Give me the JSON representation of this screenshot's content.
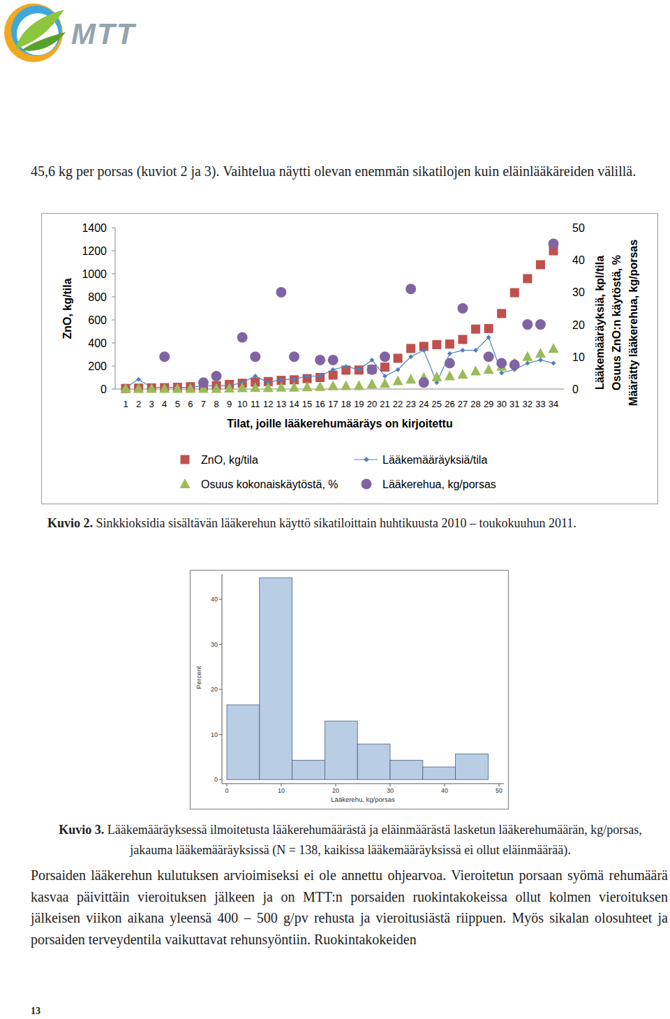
{
  "header": {
    "logo_text": "MTT"
  },
  "intro": "45,6 kg per porsas (kuviot 2 ja 3). Vaihtelua näytti olevan enemmän sikatilojen kuin eläinlääkäreiden välillä.",
  "chart_data": [
    {
      "type": "combo",
      "x_label": "Tilat, joille lääkerehumääräys on kirjoitettu",
      "y_label": "ZnO, kg/tila",
      "y2_label": [
        "Lääkemääräyksiä, kpl/tila",
        "Osuus ZnO:n käytöstä, %",
        "Määrätty lääkerehua, kg/porsas"
      ],
      "categories": [
        1,
        2,
        3,
        4,
        5,
        6,
        7,
        8,
        9,
        10,
        11,
        12,
        13,
        14,
        15,
        16,
        17,
        18,
        19,
        20,
        21,
        22,
        23,
        24,
        25,
        26,
        27,
        28,
        29,
        30,
        31,
        32,
        33,
        34
      ],
      "ylim": [
        0,
        1400
      ],
      "yticks": [
        0,
        200,
        400,
        600,
        800,
        1000,
        1200,
        1400
      ],
      "y2lim": [
        0,
        50
      ],
      "y2ticks": [
        0,
        10,
        20,
        30,
        40,
        50
      ],
      "legend": "bottom",
      "grid": false,
      "series": [
        {
          "name": "ZnO, kg/tila",
          "type": "scatter",
          "marker": "square",
          "color": "#C0504D",
          "values": [
            5,
            8,
            10,
            12,
            15,
            20,
            25,
            30,
            40,
            50,
            60,
            65,
            75,
            80,
            90,
            100,
            121,
            164,
            165,
            170,
            190,
            267,
            352,
            370,
            385,
            390,
            430,
            520,
            525,
            655,
            836,
            958,
            1079,
            1200
          ]
        },
        {
          "name": "Lääkemääräyksiä/tila",
          "type": "line",
          "marker": "diamond",
          "color": "#4F81BD",
          "axis": "y2",
          "values": [
            0.5,
            3,
            0.5,
            0.5,
            0.5,
            0.5,
            1,
            1,
            1,
            2,
            4,
            2,
            3,
            3,
            4,
            4,
            6,
            7,
            6,
            9,
            4,
            6,
            10,
            12,
            2,
            11,
            12,
            12,
            16,
            5,
            6,
            8,
            9,
            8
          ]
        },
        {
          "name": "Osuus kokonaiskäytöstä, %",
          "type": "scatter",
          "marker": "triangle",
          "color": "#9BBB59",
          "axis": "y2",
          "values": [
            0.1,
            0.1,
            0.1,
            0.1,
            0.1,
            0.1,
            0.1,
            0.1,
            0.2,
            0.3,
            0.4,
            0.4,
            0.5,
            0.5,
            0.6,
            0.7,
            0.9,
            1,
            1,
            1.5,
            1.7,
            2.5,
            3,
            3.5,
            3.7,
            4,
            4.5,
            5.5,
            6,
            7,
            8,
            10,
            11,
            12.5
          ]
        },
        {
          "name": "Lääkerehua, kg/porsas",
          "type": "scatter",
          "marker": "circle",
          "color": "#8064A2",
          "axis": "y2",
          "values": [
            null,
            null,
            null,
            10,
            null,
            null,
            2,
            4,
            null,
            16,
            10,
            null,
            30,
            10,
            null,
            9,
            9,
            null,
            null,
            6,
            10,
            null,
            31,
            2,
            null,
            8,
            25,
            null,
            10,
            8,
            7.5,
            20,
            20,
            45
          ]
        }
      ]
    },
    {
      "type": "histogram",
      "x_label": "Lääkerehu, kg/porsas",
      "y_label": "Percent",
      "color": "#B9CDE5",
      "bins": [
        0,
        6,
        12,
        18,
        24,
        30,
        36,
        42,
        48
      ],
      "values": [
        16.6,
        44.8,
        4.3,
        13.0,
        7.9,
        4.3,
        2.8,
        5.7
      ],
      "xlim": [
        -0.9,
        50.9
      ],
      "xticks": [
        0,
        10,
        20,
        30,
        40,
        50
      ],
      "ylim": [
        -0.9,
        45.6
      ],
      "yticks": [
        0,
        10,
        20,
        30,
        40
      ],
      "grid": false
    }
  ],
  "captions": [
    {
      "label": "Kuvio 2.",
      "text": "Sinkkioksidia sisältävän lääkerehun käyttö sikatiloittain huhtikuusta 2010 – toukokuuhun 2011."
    },
    {
      "label": "Kuvio 3.",
      "text": "Lääkemääräyksessä ilmoitetusta lääkerehumäärästä ja eläinmäärästä lasketun lääkerehumäärän, kg/porsas, jakauma lääkemääräyksissä (N = 138, kaikissa lääkemääräyksissä ei ollut eläinmäärää)."
    }
  ],
  "body": "Porsaiden lääkerehun kulutuksen arvioimiseksi ei ole annettu ohjearvoa. Vieroitetun porsaan syömä rehumäärä kasvaa päivittäin vieroituksen jälkeen ja on MTT:n porsaiden ruokintakokeissa ollut kolmen vieroituksen jälkeisen viikon aikana yleensä 400 – 500 g/pv rehusta ja vieroitusiästä riippuen. Myös sikalan olosuhteet ja porsaiden terveydentila vaikuttavat rehunsyöntiin. Ruokintakokeiden",
  "page_number": "13"
}
